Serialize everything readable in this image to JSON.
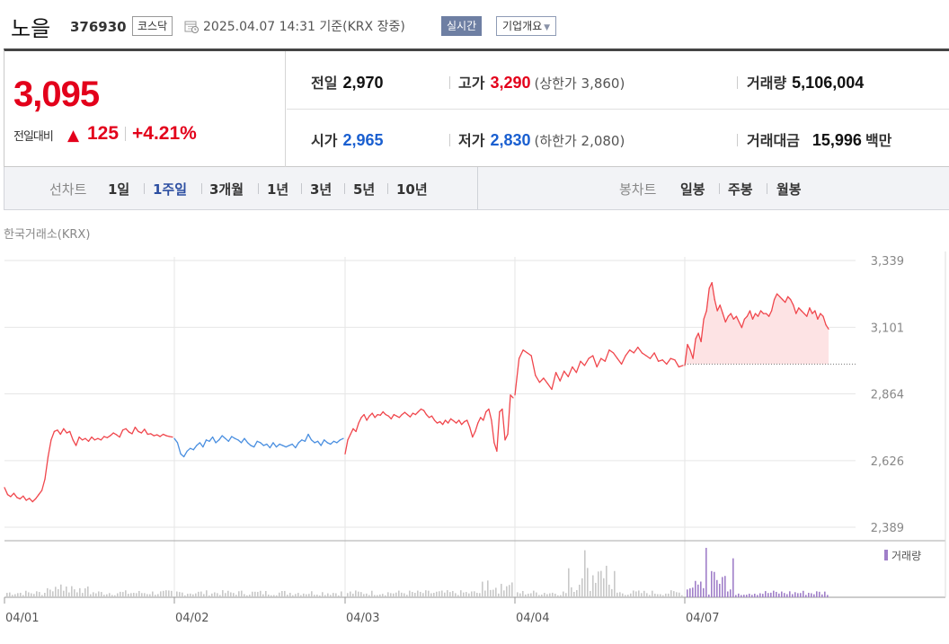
{
  "header": {
    "name": "노을",
    "code": "376930",
    "market": "코스닥",
    "timestamp": "2025.04.07 14:31 기준(KRX 장중)",
    "realtime_label": "실시간",
    "company_label": "기업개요"
  },
  "quote": {
    "price": "3,095",
    "change_label": "전일대비",
    "change": "125",
    "change_pct": "+4.21%",
    "prev_close_label": "전일",
    "prev_close": "2,970",
    "high_label": "고가",
    "high": "3,290",
    "upper_limit": "(상한가 3,860)",
    "volume_label": "거래량",
    "volume": "5,106,004",
    "open_label": "시가",
    "open": "2,965",
    "low_label": "저가",
    "low": "2,830",
    "lower_limit": "(하한가 2,080)",
    "value_label": "거래대금",
    "value": "15,996",
    "value_unit": "백만"
  },
  "period_bar": {
    "line_chart_label": "선차트",
    "line_periods": [
      "1일",
      "1주일",
      "3개월",
      "1년",
      "3년",
      "5년",
      "10년"
    ],
    "active": "1주일",
    "candle_label": "봉차트",
    "candle_periods": [
      "일봉",
      "주봉",
      "월봉"
    ]
  },
  "exchange_label": "한국거래소(KRX)",
  "chart_data": {
    "type": "line",
    "x_labels": [
      "04/01",
      "04/02",
      "04/03",
      "04/04",
      "04/07"
    ],
    "y_ticks": [
      2389,
      2626,
      2864,
      3101,
      3339
    ],
    "y_tick_labels": [
      "2,389",
      "2,626",
      "2,864",
      "3,101",
      "3,339"
    ],
    "ylim": [
      2389,
      3339
    ],
    "prev_close": 2970,
    "volume_legend": "거래량",
    "colors": {
      "up": "#f0464c",
      "down": "#4a8fe0",
      "fill": "#fde3e4",
      "grid": "#e6e6e6",
      "volume": "#c8c8c8",
      "volume_today": "#a07fc9"
    },
    "days": [
      {
        "label": "04/01",
        "points": [
          2530,
          2505,
          2498,
          2510,
          2495,
          2490,
          2500,
          2485,
          2492,
          2480,
          2490,
          2505,
          2520,
          2560,
          2640,
          2700,
          2730,
          2735,
          2720,
          2740,
          2725,
          2730,
          2700,
          2680,
          2710,
          2700,
          2705,
          2695,
          2710,
          2700,
          2705,
          2700,
          2712,
          2708,
          2715,
          2725,
          2718,
          2710,
          2735,
          2740,
          2728,
          2722,
          2745,
          2730,
          2725,
          2738,
          2720,
          2722,
          2715,
          2718,
          2712,
          2720,
          2715,
          2712,
          2710
        ]
      },
      {
        "label": "04/02",
        "points": [
          2705,
          2690,
          2650,
          2640,
          2660,
          2670,
          2665,
          2680,
          2690,
          2675,
          2700,
          2695,
          2710,
          2690,
          2700,
          2715,
          2705,
          2695,
          2712,
          2705,
          2700,
          2690,
          2705,
          2690,
          2680,
          2675,
          2695,
          2690,
          2680,
          2685,
          2672,
          2690,
          2675,
          2685,
          2680,
          2675,
          2680,
          2685,
          2672,
          2690,
          2700,
          2695,
          2720,
          2700,
          2690,
          2695,
          2680,
          2700,
          2690,
          2685,
          2695,
          2690,
          2700,
          2705
        ]
      },
      {
        "label": "04/03",
        "points": [
          2650,
          2700,
          2720,
          2740,
          2730,
          2760,
          2780,
          2790,
          2770,
          2785,
          2795,
          2780,
          2790,
          2788,
          2800,
          2790,
          2785,
          2775,
          2790,
          2785,
          2780,
          2790,
          2798,
          2790,
          2782,
          2795,
          2790,
          2800,
          2810,
          2805,
          2790,
          2780,
          2785,
          2770,
          2760,
          2765,
          2755,
          2770,
          2760,
          2775,
          2768,
          2760,
          2770,
          2755,
          2765,
          2770,
          2745,
          2710,
          2730,
          2760,
          2780,
          2770,
          2800,
          2810,
          2770,
          2690,
          2660,
          2800,
          2810,
          2700,
          2720,
          2860,
          2850
        ]
      },
      {
        "label": "04/04",
        "points": [
          2860,
          2990,
          3020,
          3010,
          3000,
          2930,
          2905,
          2920,
          2900,
          2880,
          2940,
          2910,
          2945,
          2925,
          2960,
          2940,
          2980,
          2965,
          2990,
          3000,
          2960,
          2990,
          2980,
          3020,
          3010,
          2990,
          2970,
          3000,
          3020,
          3010,
          3030,
          3010,
          3000,
          2990,
          3010,
          2980,
          2985,
          2970,
          2990,
          2985,
          2960,
          2965
        ]
      },
      {
        "label": "04/07",
        "points": [
          2965,
          3040,
          3020,
          2990,
          3060,
          3080,
          3050,
          3130,
          3160,
          3240,
          3260,
          3200,
          3160,
          3180,
          3150,
          3120,
          3140,
          3150,
          3130,
          3140,
          3120,
          3100,
          3130,
          3140,
          3160,
          3130,
          3150,
          3140,
          3160,
          3150,
          3150,
          3140,
          3160,
          3200,
          3220,
          3210,
          3200,
          3190,
          3210,
          3200,
          3180,
          3150,
          3170,
          3160,
          3150,
          3140,
          3170,
          3150,
          3160,
          3130,
          3150,
          3140,
          3110,
          3095
        ]
      }
    ]
  }
}
